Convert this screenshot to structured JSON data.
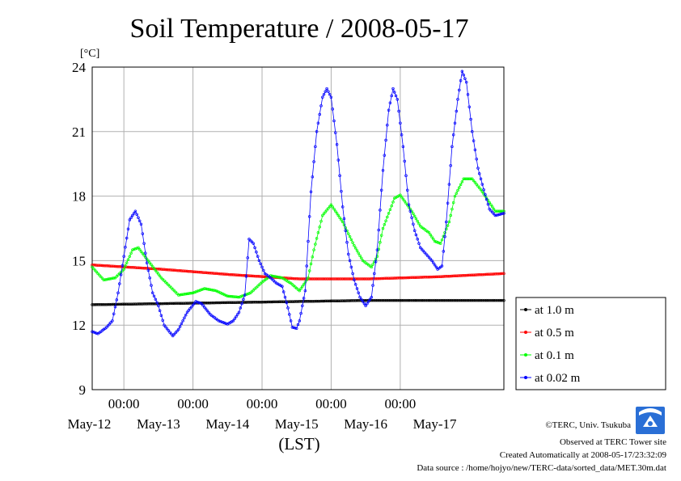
{
  "chart_data": {
    "type": "line",
    "title": "Soil Temperature / 2008-05-17",
    "ylabel_unit": "[°C]",
    "xlabel": "(LST)",
    "ylim": [
      9,
      24
    ],
    "y_ticks": [
      9,
      12,
      15,
      18,
      21,
      24
    ],
    "x_range_hours": [
      -11,
      132
    ],
    "x_midnight_ticks": [
      "00:00",
      "00:00",
      "00:00",
      "00:00",
      "00:00"
    ],
    "x_date_labels": [
      "May-12",
      "May-13",
      "May-14",
      "May-15",
      "May-16",
      "May-17"
    ],
    "legend_position": "right-bottom",
    "grid": true,
    "series": [
      {
        "name": "at 1.0 m",
        "color": "#000000",
        "points": [
          [
            -11,
            12.95
          ],
          [
            13,
            13.0
          ],
          [
            37,
            13.05
          ],
          [
            61,
            13.1
          ],
          [
            85,
            13.15
          ],
          [
            109,
            13.15
          ],
          [
            132,
            13.15
          ]
        ]
      },
      {
        "name": "at 0.5 m",
        "color": "#ff0000",
        "points": [
          [
            -11,
            14.8
          ],
          [
            13,
            14.6
          ],
          [
            37,
            14.35
          ],
          [
            61,
            14.15
          ],
          [
            85,
            14.15
          ],
          [
            109,
            14.25
          ],
          [
            132,
            14.4
          ]
        ]
      },
      {
        "name": "at 0.1 m",
        "color": "#00ff00",
        "points": [
          [
            -11,
            14.7
          ],
          [
            -7,
            14.1
          ],
          [
            -3,
            14.2
          ],
          [
            0,
            14.6
          ],
          [
            3,
            15.5
          ],
          [
            5,
            15.6
          ],
          [
            9,
            14.9
          ],
          [
            13,
            14.2
          ],
          [
            16,
            13.8
          ],
          [
            19,
            13.4
          ],
          [
            24,
            13.5
          ],
          [
            28,
            13.7
          ],
          [
            32,
            13.6
          ],
          [
            36,
            13.35
          ],
          [
            40,
            13.3
          ],
          [
            44,
            13.5
          ],
          [
            48,
            14.0
          ],
          [
            51,
            14.3
          ],
          [
            55,
            14.2
          ],
          [
            58,
            13.95
          ],
          [
            61,
            13.6
          ],
          [
            64,
            14.2
          ],
          [
            66,
            15.5
          ],
          [
            69,
            17.1
          ],
          [
            72,
            17.6
          ],
          [
            76,
            16.8
          ],
          [
            80,
            15.7
          ],
          [
            83,
            15.0
          ],
          [
            86,
            14.7
          ],
          [
            88,
            15.2
          ],
          [
            90,
            16.5
          ],
          [
            94,
            17.9
          ],
          [
            96,
            18.05
          ],
          [
            100,
            17.3
          ],
          [
            103,
            16.6
          ],
          [
            106,
            16.3
          ],
          [
            108,
            15.9
          ],
          [
            110,
            15.8
          ],
          [
            113,
            16.8
          ],
          [
            115,
            18.0
          ],
          [
            118,
            18.8
          ],
          [
            121,
            18.8
          ],
          [
            124,
            18.3
          ],
          [
            127,
            17.7
          ],
          [
            129,
            17.3
          ],
          [
            132,
            17.3
          ]
        ]
      },
      {
        "name": "at 0.02 m",
        "color": "#0000ff",
        "points": [
          [
            -11,
            11.7
          ],
          [
            -9,
            11.6
          ],
          [
            -6,
            11.9
          ],
          [
            -4,
            12.2
          ],
          [
            -2,
            13.5
          ],
          [
            0,
            15.2
          ],
          [
            2,
            16.9
          ],
          [
            4,
            17.3
          ],
          [
            6,
            16.7
          ],
          [
            8,
            14.9
          ],
          [
            10,
            13.5
          ],
          [
            12,
            12.9
          ],
          [
            14,
            12.0
          ],
          [
            17,
            11.5
          ],
          [
            19,
            11.8
          ],
          [
            22,
            12.6
          ],
          [
            25,
            13.1
          ],
          [
            27,
            13.0
          ],
          [
            30,
            12.5
          ],
          [
            33,
            12.2
          ],
          [
            36,
            12.05
          ],
          [
            38,
            12.2
          ],
          [
            40,
            12.6
          ],
          [
            42,
            13.4
          ],
          [
            43.5,
            16.0
          ],
          [
            45,
            15.8
          ],
          [
            47,
            15.0
          ],
          [
            49,
            14.4
          ],
          [
            51,
            14.2
          ],
          [
            53,
            13.95
          ],
          [
            55,
            13.8
          ],
          [
            57,
            12.8
          ],
          [
            58.5,
            11.9
          ],
          [
            60,
            11.85
          ],
          [
            61,
            12.2
          ],
          [
            63,
            13.6
          ],
          [
            65,
            18.2
          ],
          [
            67,
            21.0
          ],
          [
            69,
            22.6
          ],
          [
            70.5,
            23.0
          ],
          [
            72,
            22.6
          ],
          [
            74,
            20.4
          ],
          [
            76,
            17.5
          ],
          [
            78,
            15.3
          ],
          [
            80,
            14.1
          ],
          [
            82,
            13.3
          ],
          [
            84,
            12.9
          ],
          [
            86,
            13.3
          ],
          [
            88,
            15.5
          ],
          [
            90,
            19.2
          ],
          [
            92,
            22.0
          ],
          [
            93.5,
            23.0
          ],
          [
            95,
            22.5
          ],
          [
            97,
            20.3
          ],
          [
            99,
            17.6
          ],
          [
            101,
            16.4
          ],
          [
            103,
            15.6
          ],
          [
            105,
            15.3
          ],
          [
            107,
            15.0
          ],
          [
            109,
            14.6
          ],
          [
            110.5,
            14.75
          ],
          [
            112,
            16.8
          ],
          [
            114,
            20.3
          ],
          [
            116,
            22.5
          ],
          [
            117.5,
            23.8
          ],
          [
            119,
            23.3
          ],
          [
            121,
            21.0
          ],
          [
            123,
            19.3
          ],
          [
            125,
            18.3
          ],
          [
            127,
            17.4
          ],
          [
            129,
            17.1
          ],
          [
            132,
            17.2
          ]
        ]
      }
    ]
  },
  "credits": {
    "copyright": "©TERC, Univ. Tsukuba",
    "observed": "Observed at TERC Tower site",
    "created": "Created Automatically at 2008-05-17/23:32:09",
    "source": "Data source : /home/hojyo/new/TERC-data/sorted_data/MET.30m.dat"
  },
  "logo": {
    "label": "TERC"
  }
}
